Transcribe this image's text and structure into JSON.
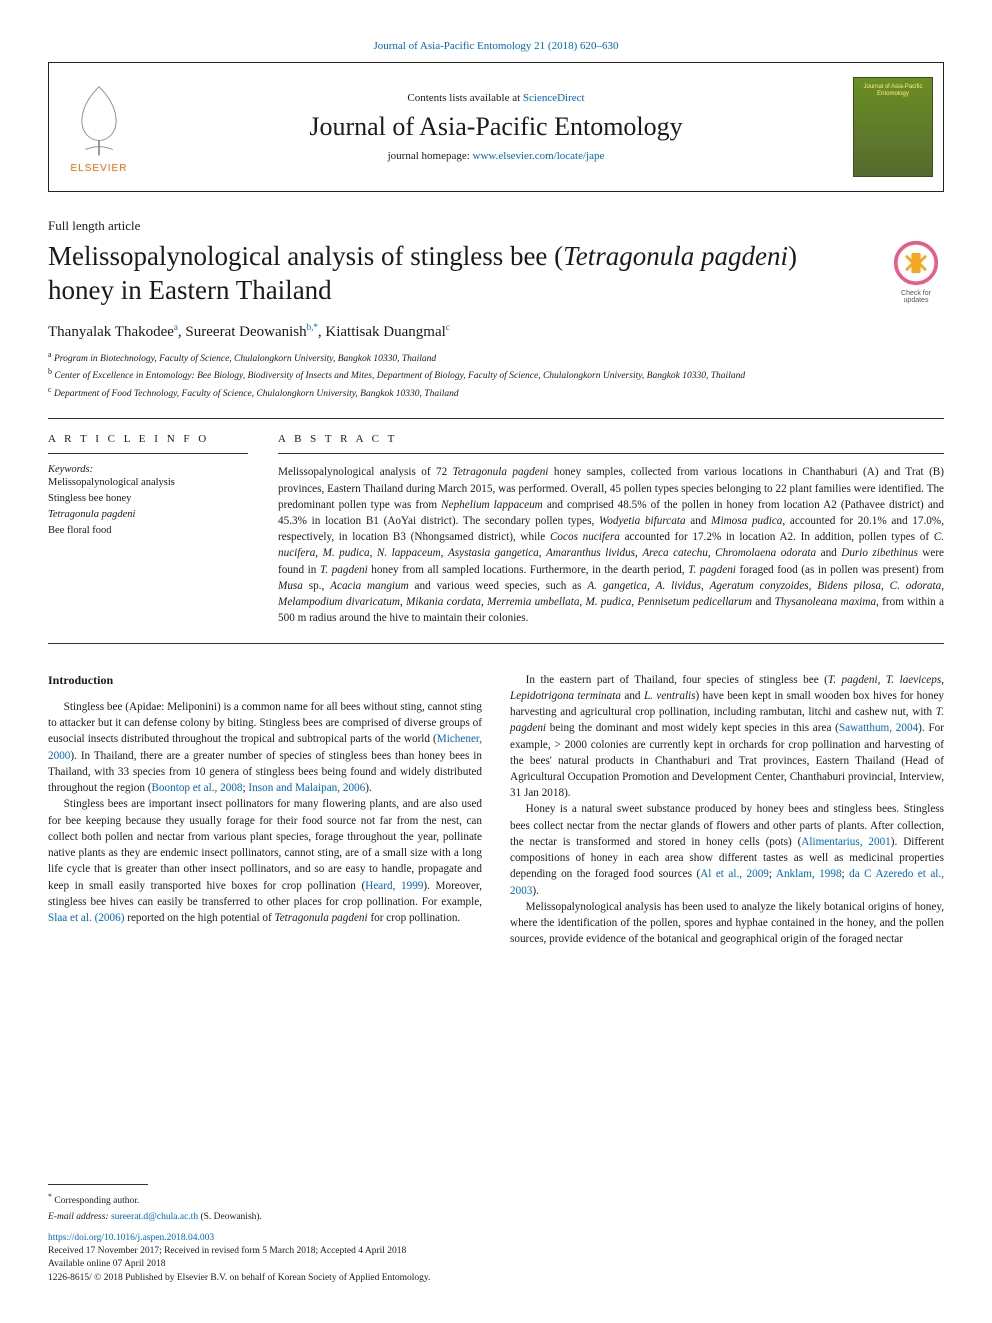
{
  "header": {
    "top_link": "Journal of Asia-Pacific Entomology 21 (2018) 620–630",
    "contents_prefix": "Contents lists available at ",
    "contents_link": "ScienceDirect",
    "journal_name": "Journal of Asia-Pacific Entomology",
    "homepage_prefix": "journal homepage: ",
    "homepage_link": "www.elsevier.com/locate/jape",
    "elsevier_label": "ELSEVIER",
    "journal_logo_text": "Journal of Asia-Pacific Entomology"
  },
  "article": {
    "type": "Full length article",
    "title_html": "Melissopalynological analysis of stingless bee (<em>Tetragonula pagdeni</em>) honey in Eastern Thailand",
    "updates_label": "Check for updates",
    "authors_html": "Thanyalak Thakodee<sup>a</sup>, Sureerat Deowanish<sup>b,*</sup>, Kiattisak Duangmal<sup>c</sup>",
    "affiliations": [
      {
        "sup": "a",
        "text": "Program in Biotechnology, Faculty of Science, Chulalongkorn University, Bangkok 10330, Thailand"
      },
      {
        "sup": "b",
        "text": "Center of Excellence in Entomology: Bee Biology, Biodiversity of Insects and Mites, Department of Biology, Faculty of Science, Chulalongkorn University, Bangkok 10330, Thailand"
      },
      {
        "sup": "c",
        "text": "Department of Food Technology, Faculty of Science, Chulalongkorn University, Bangkok 10330, Thailand"
      }
    ]
  },
  "info": {
    "heading": "A R T I C L E  I N F O",
    "keywords_label": "Keywords:",
    "keywords": [
      "Melissopalynological analysis",
      "Stingless bee honey",
      "Tetragonula pagdeni",
      "Bee floral food"
    ]
  },
  "abstract": {
    "heading": "A B S T R A C T",
    "text_html": "Melissopalynological analysis of 72 <em>Tetragonula pagdeni</em> honey samples, collected from various locations in Chanthaburi (A) and Trat (B) provinces, Eastern Thailand during March 2015, was performed. Overall, 45 pollen types species belonging to 22 plant families were identified. The predominant pollen type was from <em>Nephelium lappaceum</em> and comprised 48.5% of the pollen in honey from location A2 (Pathavee district) and 45.3% in location B1 (AoYai district). The secondary pollen types, <em>Wodyetia bifurcata</em> and <em>Mimosa pudica</em>, accounted for 20.1% and 17.0%, respectively, in location B3 (Nhongsamed district), while <em>Cocos nucifera</em> accounted for 17.2% in location A2. In addition, pollen types of <em>C. nucifera</em>, <em>M. pudica</em>, <em>N. lappaceum</em>, <em>Asystasia gangetica</em>, <em>Amaranthus lividus</em>, <em>Areca catechu</em>, <em>Chromolaena odorata</em> and <em>Durio zibethinus</em> were found in <em>T. pagdeni</em> honey from all sampled locations. Furthermore, in the dearth period, <em>T. pagdeni</em> foraged food (as in pollen was present) from <em>Musa</em> sp., <em>Acacia mangium</em> and various weed species, such as <em>A. gangetica</em>, <em>A. lividus</em>, <em>Ageratum conyzoides</em>, <em>Bidens pilosa</em>, <em>C. odorata</em>, <em>Melampodium divaricatum</em>, <em>Mikania cordata</em>, <em>Merremia umbellata</em>, <em>M. pudica</em>, <em>Pennisetum pedicellarum</em> and <em>Thysanoleana maxima</em>, from within a 500 m radius around the hive to maintain their colonies."
  },
  "body": {
    "intro_heading": "Introduction",
    "col1_paras": [
      "Stingless bee (Apidae: Meliponini) is a common name for all bees without sting, cannot sting to attacker but it can defense colony by biting. Stingless bees are comprised of diverse groups of eusocial insects distributed throughout the tropical and subtropical parts of the world (<a>Michener, 2000</a>). In Thailand, there are a greater number of species of stingless bees than honey bees in Thailand, with 33 species from 10 genera of stingless bees being found and widely distributed throughout the region (<a>Boontop et al., 2008</a>; <a>Inson and Malaipan, 2006</a>).",
      "Stingless bees are important insect pollinators for many flowering plants, and are also used for bee keeping because they usually forage for their food source not far from the nest, can collect both pollen and nectar from various plant species, forage throughout the year, pollinate native plants as they are endemic insect pollinators, cannot sting, are of a small size with a long life cycle that is greater than other insect pollinators, and so are easy to handle, propagate and keep in small easily transported hive boxes for crop pollination (<a>Heard, 1999</a>). Moreover, stingless bee hives can easily be transferred to other places for crop pollination. For example, <a>Slaa et al. (2006)</a> reported on the high potential of <em>Tetragonula pagdeni</em> for crop pollination."
    ],
    "col2_paras": [
      "In the eastern part of Thailand, four species of stingless bee (<em>T. pagdeni</em>, <em>T. laeviceps</em>, <em>Lepidotrigona terminata</em> and <em>L. ventralis</em>) have been kept in small wooden box hives for honey harvesting and agricultural crop pollination, including rambutan, litchi and cashew nut, with <em>T. pagdeni</em> being the dominant and most widely kept species in this area (<a>Sawatthum, 2004</a>). For example, &gt; 2000 colonies are currently kept in orchards for crop pollination and harvesting of the bees' natural products in Chanthaburi and Trat provinces, Eastern Thailand (Head of Agricultural Occupation Promotion and Development Center, Chanthaburi provincial, Interview, 31 Jan 2018).",
      "Honey is a natural sweet substance produced by honey bees and stingless bees. Stingless bees collect nectar from the nectar glands of flowers and other parts of plants. After collection, the nectar is transformed and stored in honey cells (pots) (<a>Alimentarius, 2001</a>). Different compositions of honey in each area show different tastes as well as medicinal properties depending on the foraged food sources (<a>Al et al., 2009</a>; <a>Anklam, 1998</a>; <a>da C Azeredo et al., 2003</a>).",
      "Melissopalynological analysis has been used to analyze the likely botanical origins of honey, where the identification of the pollen, spores and hyphae contained in the honey, and the pollen sources, provide evidence of the botanical and geographical origin of the foraged nectar"
    ]
  },
  "footer": {
    "corr_symbol": "*",
    "corr_text": "Corresponding author.",
    "email_label": "E-mail address: ",
    "email": "sureerat.d@chula.ac.th",
    "email_suffix": " (S. Deowanish).",
    "doi": "https://doi.org/10.1016/j.aspen.2018.04.003",
    "received": "Received 17 November 2017; Received in revised form 5 March 2018; Accepted 4 April 2018",
    "available": "Available online 07 April 2018",
    "copyright": "1226-8615/ © 2018 Published by Elsevier B.V. on behalf of Korean Society of Applied Entomology."
  },
  "colors": {
    "link": "#0066cc",
    "elsevier_orange": "#ff6600",
    "journal_green_top": "#6b8e23",
    "journal_green_bot": "#556b2f",
    "rule": "#333333",
    "badge_ring": "#e85d88",
    "badge_mark": "#f5a623"
  }
}
